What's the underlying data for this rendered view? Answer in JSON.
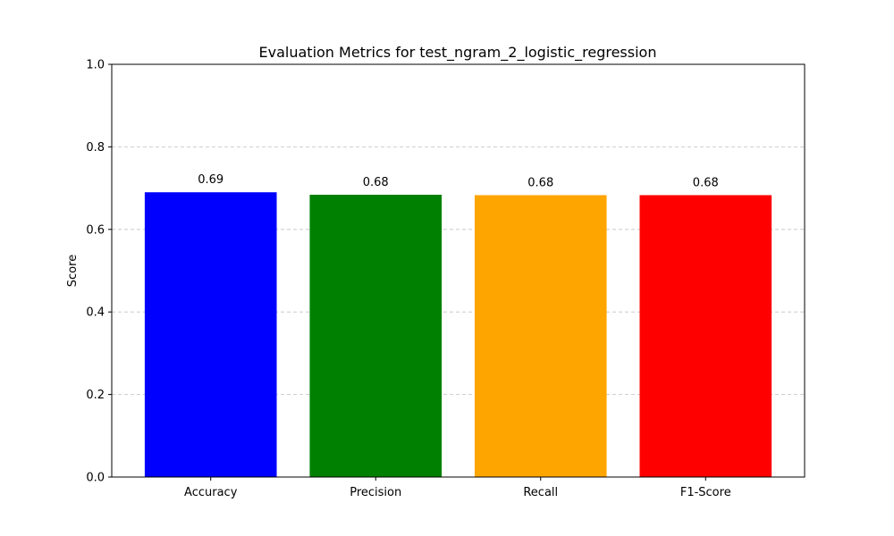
{
  "chart_data": {
    "type": "bar",
    "title": "Evaluation Metrics for test_ngram_2_logistic_regression",
    "xlabel": "",
    "ylabel": "Score",
    "categories": [
      "Accuracy",
      "Precision",
      "Recall",
      "F1-Score"
    ],
    "values": [
      0.69,
      0.684,
      0.683,
      0.683
    ],
    "value_labels": [
      "0.69",
      "0.68",
      "0.68",
      "0.68"
    ],
    "colors": [
      "#0000ff",
      "#008000",
      "#ffa500",
      "#ff0000"
    ],
    "ylim": [
      0,
      1.0
    ],
    "yticks": [
      0.0,
      0.2,
      0.4,
      0.6,
      0.8,
      1.0
    ],
    "ytick_labels": [
      "0.0",
      "0.2",
      "0.4",
      "0.6",
      "0.8",
      "1.0"
    ],
    "grid": {
      "axis": "y",
      "style": "dashed",
      "color": "#c0c0c0"
    },
    "legend": "none"
  }
}
